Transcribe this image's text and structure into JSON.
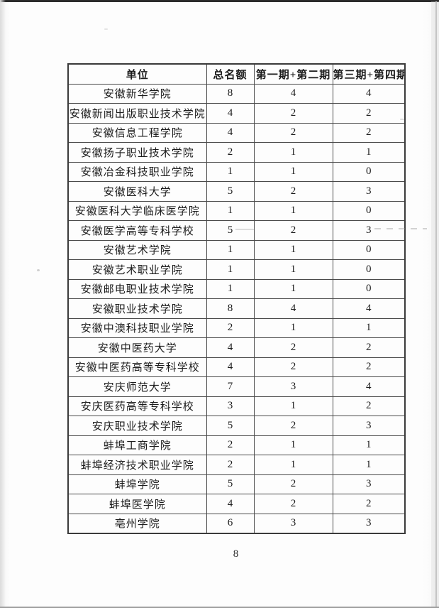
{
  "page": {
    "number": "8"
  },
  "table": {
    "headers": [
      "单位",
      "总名额",
      "第一期+第二期",
      "第三期+第四期"
    ],
    "rows": [
      [
        "安徽新华学院",
        "8",
        "4",
        "4"
      ],
      [
        "安徽新闻出版职业技术学院",
        "4",
        "2",
        "2"
      ],
      [
        "安徽信息工程学院",
        "4",
        "2",
        "2"
      ],
      [
        "安徽扬子职业技术学院",
        "2",
        "1",
        "1"
      ],
      [
        "安徽冶金科技职业学院",
        "1",
        "1",
        "0"
      ],
      [
        "安徽医科大学",
        "5",
        "2",
        "3"
      ],
      [
        "安徽医科大学临床医学院",
        "1",
        "1",
        "0"
      ],
      [
        "安徽医学高等专科学校",
        "5",
        "2",
        "3"
      ],
      [
        "安徽艺术学院",
        "1",
        "1",
        "0"
      ],
      [
        "安徽艺术职业学院",
        "1",
        "1",
        "0"
      ],
      [
        "安徽邮电职业技术学院",
        "1",
        "1",
        "0"
      ],
      [
        "安徽职业技术学院",
        "8",
        "4",
        "4"
      ],
      [
        "安徽中澳科技职业学院",
        "2",
        "1",
        "1"
      ],
      [
        "安徽中医药大学",
        "4",
        "2",
        "2"
      ],
      [
        "安徽中医药高等专科学校",
        "4",
        "2",
        "2"
      ],
      [
        "安庆师范大学",
        "7",
        "3",
        "4"
      ],
      [
        "安庆医药高等专科学校",
        "3",
        "1",
        "2"
      ],
      [
        "安庆职业技术学院",
        "5",
        "2",
        "3"
      ],
      [
        "蚌埠工商学院",
        "2",
        "1",
        "1"
      ],
      [
        "蚌埠经济技术职业学院",
        "2",
        "1",
        "1"
      ],
      [
        "蚌埠学院",
        "5",
        "2",
        "3"
      ],
      [
        "蚌埠医学院",
        "4",
        "2",
        "2"
      ],
      [
        "亳州学院",
        "6",
        "3",
        "3"
      ]
    ]
  },
  "colors": {
    "ink": "#1c1c1c",
    "table_border": "#4a4a4a",
    "paper": "#fdfdfd",
    "scan_edge_top": "#2b2b2b"
  }
}
